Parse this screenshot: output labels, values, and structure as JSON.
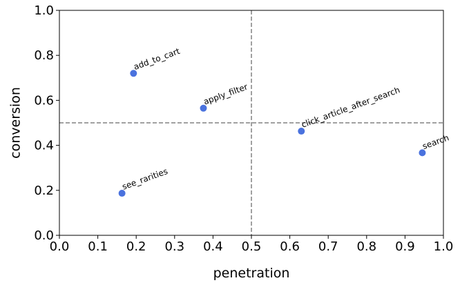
{
  "chart_data": {
    "type": "scatter",
    "title": "",
    "xlabel": "penetration",
    "ylabel": "conversion",
    "xlim": [
      0.0,
      1.0
    ],
    "ylim": [
      0.0,
      1.0
    ],
    "xticks": [
      "0.0",
      "0.1",
      "0.2",
      "0.3",
      "0.4",
      "0.5",
      "0.6",
      "0.7",
      "0.8",
      "0.9",
      "1.0"
    ],
    "yticks": [
      "0.0",
      "0.2",
      "0.4",
      "0.6",
      "0.8",
      "1.0"
    ],
    "grid": false,
    "reference_lines": {
      "x": 0.5,
      "y": 0.5,
      "style": "dashed",
      "color": "#808080"
    },
    "marker_color": "#4a72de",
    "points": [
      {
        "label": "add_to_cart",
        "x": 0.193,
        "y": 0.72
      },
      {
        "label": "apply_filter",
        "x": 0.375,
        "y": 0.565
      },
      {
        "label": "click_article_after_search",
        "x": 0.63,
        "y": 0.463
      },
      {
        "label": "search",
        "x": 0.945,
        "y": 0.367
      },
      {
        "label": "see_rarities",
        "x": 0.163,
        "y": 0.187
      }
    ]
  }
}
